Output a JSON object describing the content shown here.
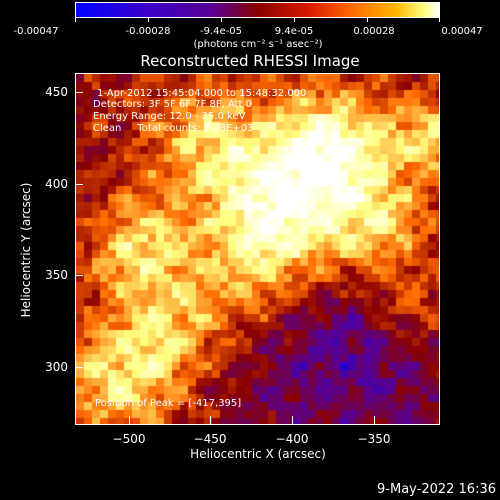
{
  "colorbar": {
    "tick_labels": [
      "-0.00047",
      "-0.00028",
      "-9.4e-05",
      "9.4e-05",
      "0.00028",
      "0.00047"
    ],
    "units": "(photons cm⁻² s⁻¹ asec⁻²)",
    "colors": [
      "#0000ff",
      "#5a0090",
      "#8a0000",
      "#ff6a00",
      "#ffff80",
      "#ffffff"
    ]
  },
  "plot": {
    "title": "Reconstructed RHESSI Image",
    "info_lines": [
      "1-Apr-2012 15:45:04.000 to 15:48:32.000",
      "Detectors: 3F 5F 6F 7F 8F, Att 0",
      "Energy Range: 12.0 - 25.0 keV",
      "Clean     Total counts: 2.28E+03"
    ],
    "peak_text": "Position of Peak = [-417,395]",
    "x_label": "Heliocentric X (arcsec)",
    "y_label": "Heliocentric Y (arcsec)",
    "x_ticks": [
      "−500",
      "−450",
      "−400",
      "−350"
    ],
    "y_ticks": [
      "450",
      "400",
      "350",
      "300"
    ]
  },
  "footer": {
    "date": "9-May-2022 16:36"
  }
}
